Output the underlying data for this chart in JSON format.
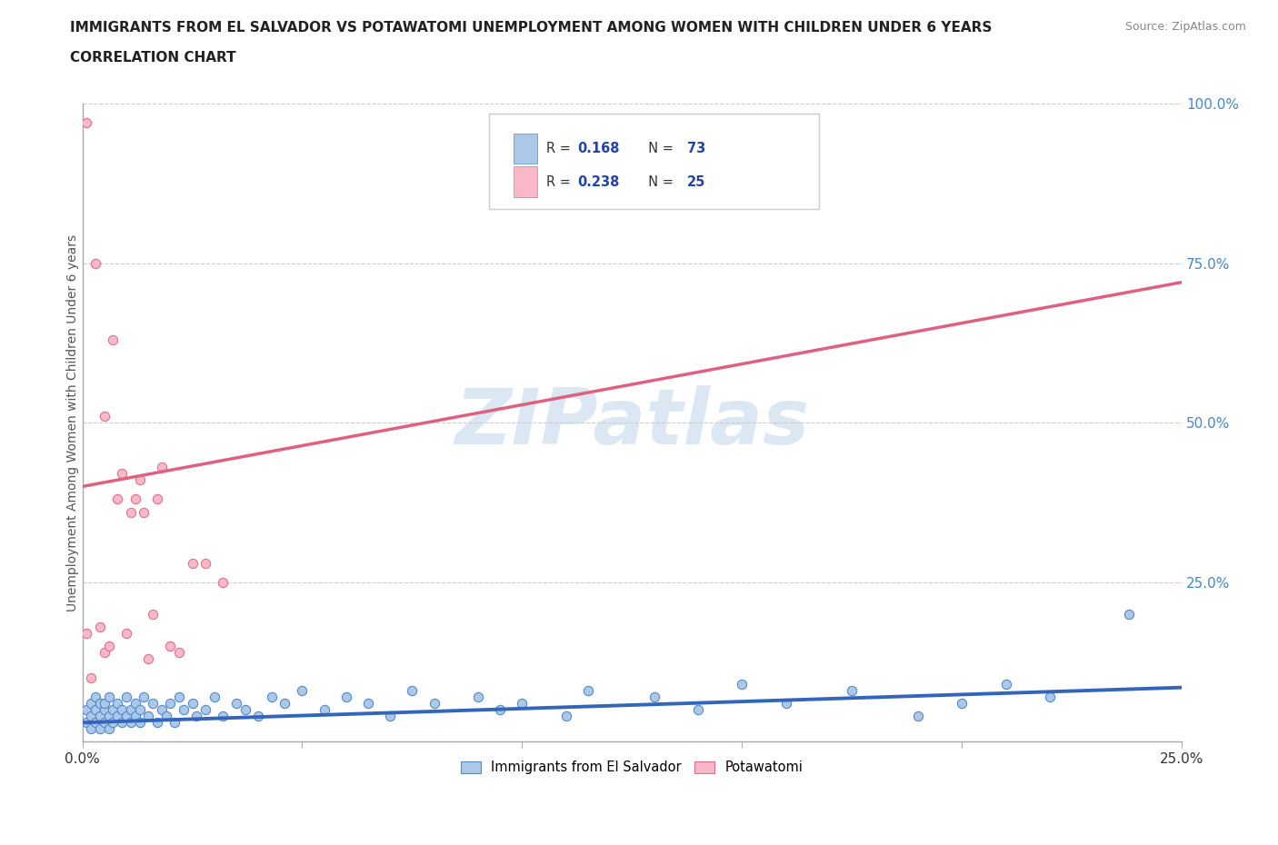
{
  "title_line1": "IMMIGRANTS FROM EL SALVADOR VS POTAWATOMI UNEMPLOYMENT AMONG WOMEN WITH CHILDREN UNDER 6 YEARS",
  "title_line2": "CORRELATION CHART",
  "source_text": "Source: ZipAtlas.com",
  "ylabel": "Unemployment Among Women with Children Under 6 years",
  "xlim": [
    0.0,
    0.25
  ],
  "ylim": [
    0.0,
    1.0
  ],
  "xticks": [
    0.0,
    0.05,
    0.1,
    0.15,
    0.2,
    0.25
  ],
  "yticks": [
    0.0,
    0.25,
    0.5,
    0.75,
    1.0
  ],
  "watermark": "ZIPatlas",
  "series_blue": {
    "name": "Immigrants from El Salvador",
    "R": 0.168,
    "N": 73,
    "color": "#aac8e8",
    "edge_color": "#5588cc",
    "line_color": "#3366bb",
    "x": [
      0.001,
      0.001,
      0.002,
      0.002,
      0.002,
      0.003,
      0.003,
      0.003,
      0.004,
      0.004,
      0.004,
      0.005,
      0.005,
      0.005,
      0.006,
      0.006,
      0.006,
      0.007,
      0.007,
      0.008,
      0.008,
      0.009,
      0.009,
      0.01,
      0.01,
      0.011,
      0.011,
      0.012,
      0.012,
      0.013,
      0.013,
      0.014,
      0.015,
      0.016,
      0.017,
      0.018,
      0.019,
      0.02,
      0.021,
      0.022,
      0.023,
      0.025,
      0.026,
      0.028,
      0.03,
      0.032,
      0.035,
      0.037,
      0.04,
      0.043,
      0.046,
      0.05,
      0.055,
      0.06,
      0.065,
      0.07,
      0.075,
      0.08,
      0.09,
      0.095,
      0.1,
      0.11,
      0.115,
      0.13,
      0.14,
      0.15,
      0.16,
      0.175,
      0.19,
      0.2,
      0.21,
      0.22,
      0.238
    ],
    "y": [
      0.03,
      0.05,
      0.04,
      0.06,
      0.02,
      0.05,
      0.03,
      0.07,
      0.04,
      0.06,
      0.02,
      0.05,
      0.03,
      0.06,
      0.04,
      0.07,
      0.02,
      0.05,
      0.03,
      0.04,
      0.06,
      0.03,
      0.05,
      0.04,
      0.07,
      0.03,
      0.05,
      0.04,
      0.06,
      0.03,
      0.05,
      0.07,
      0.04,
      0.06,
      0.03,
      0.05,
      0.04,
      0.06,
      0.03,
      0.07,
      0.05,
      0.06,
      0.04,
      0.05,
      0.07,
      0.04,
      0.06,
      0.05,
      0.04,
      0.07,
      0.06,
      0.08,
      0.05,
      0.07,
      0.06,
      0.04,
      0.08,
      0.06,
      0.07,
      0.05,
      0.06,
      0.04,
      0.08,
      0.07,
      0.05,
      0.09,
      0.06,
      0.08,
      0.04,
      0.06,
      0.09,
      0.07,
      0.2
    ],
    "trendline_x": [
      0.0,
      0.25
    ],
    "trendline_y": [
      0.03,
      0.085
    ]
  },
  "series_pink": {
    "name": "Potawatomi",
    "R": 0.238,
    "N": 25,
    "color": "#f8b8c8",
    "edge_color": "#e07090",
    "line_color": "#e06080",
    "x": [
      0.001,
      0.001,
      0.002,
      0.003,
      0.004,
      0.005,
      0.005,
      0.006,
      0.007,
      0.008,
      0.009,
      0.01,
      0.011,
      0.012,
      0.013,
      0.014,
      0.015,
      0.016,
      0.017,
      0.018,
      0.02,
      0.022,
      0.025,
      0.028,
      0.032
    ],
    "y": [
      0.97,
      0.17,
      0.1,
      0.75,
      0.18,
      0.51,
      0.14,
      0.15,
      0.63,
      0.38,
      0.42,
      0.17,
      0.36,
      0.38,
      0.41,
      0.36,
      0.13,
      0.2,
      0.38,
      0.43,
      0.15,
      0.14,
      0.28,
      0.28,
      0.25
    ],
    "trendline_x": [
      0.0,
      0.25
    ],
    "trendline_y": [
      0.4,
      0.72
    ]
  },
  "legend_R_color": "#2244aa",
  "legend_N_color": "#2244aa",
  "legend_label_color": "#333333",
  "ytick_color": "#4488cc",
  "xtick_color": "#333333",
  "background_color": "#ffffff",
  "grid_color": "#cccccc",
  "title_color": "#222222",
  "watermark_color": "#c5d8ee",
  "spine_color": "#aaaaaa"
}
